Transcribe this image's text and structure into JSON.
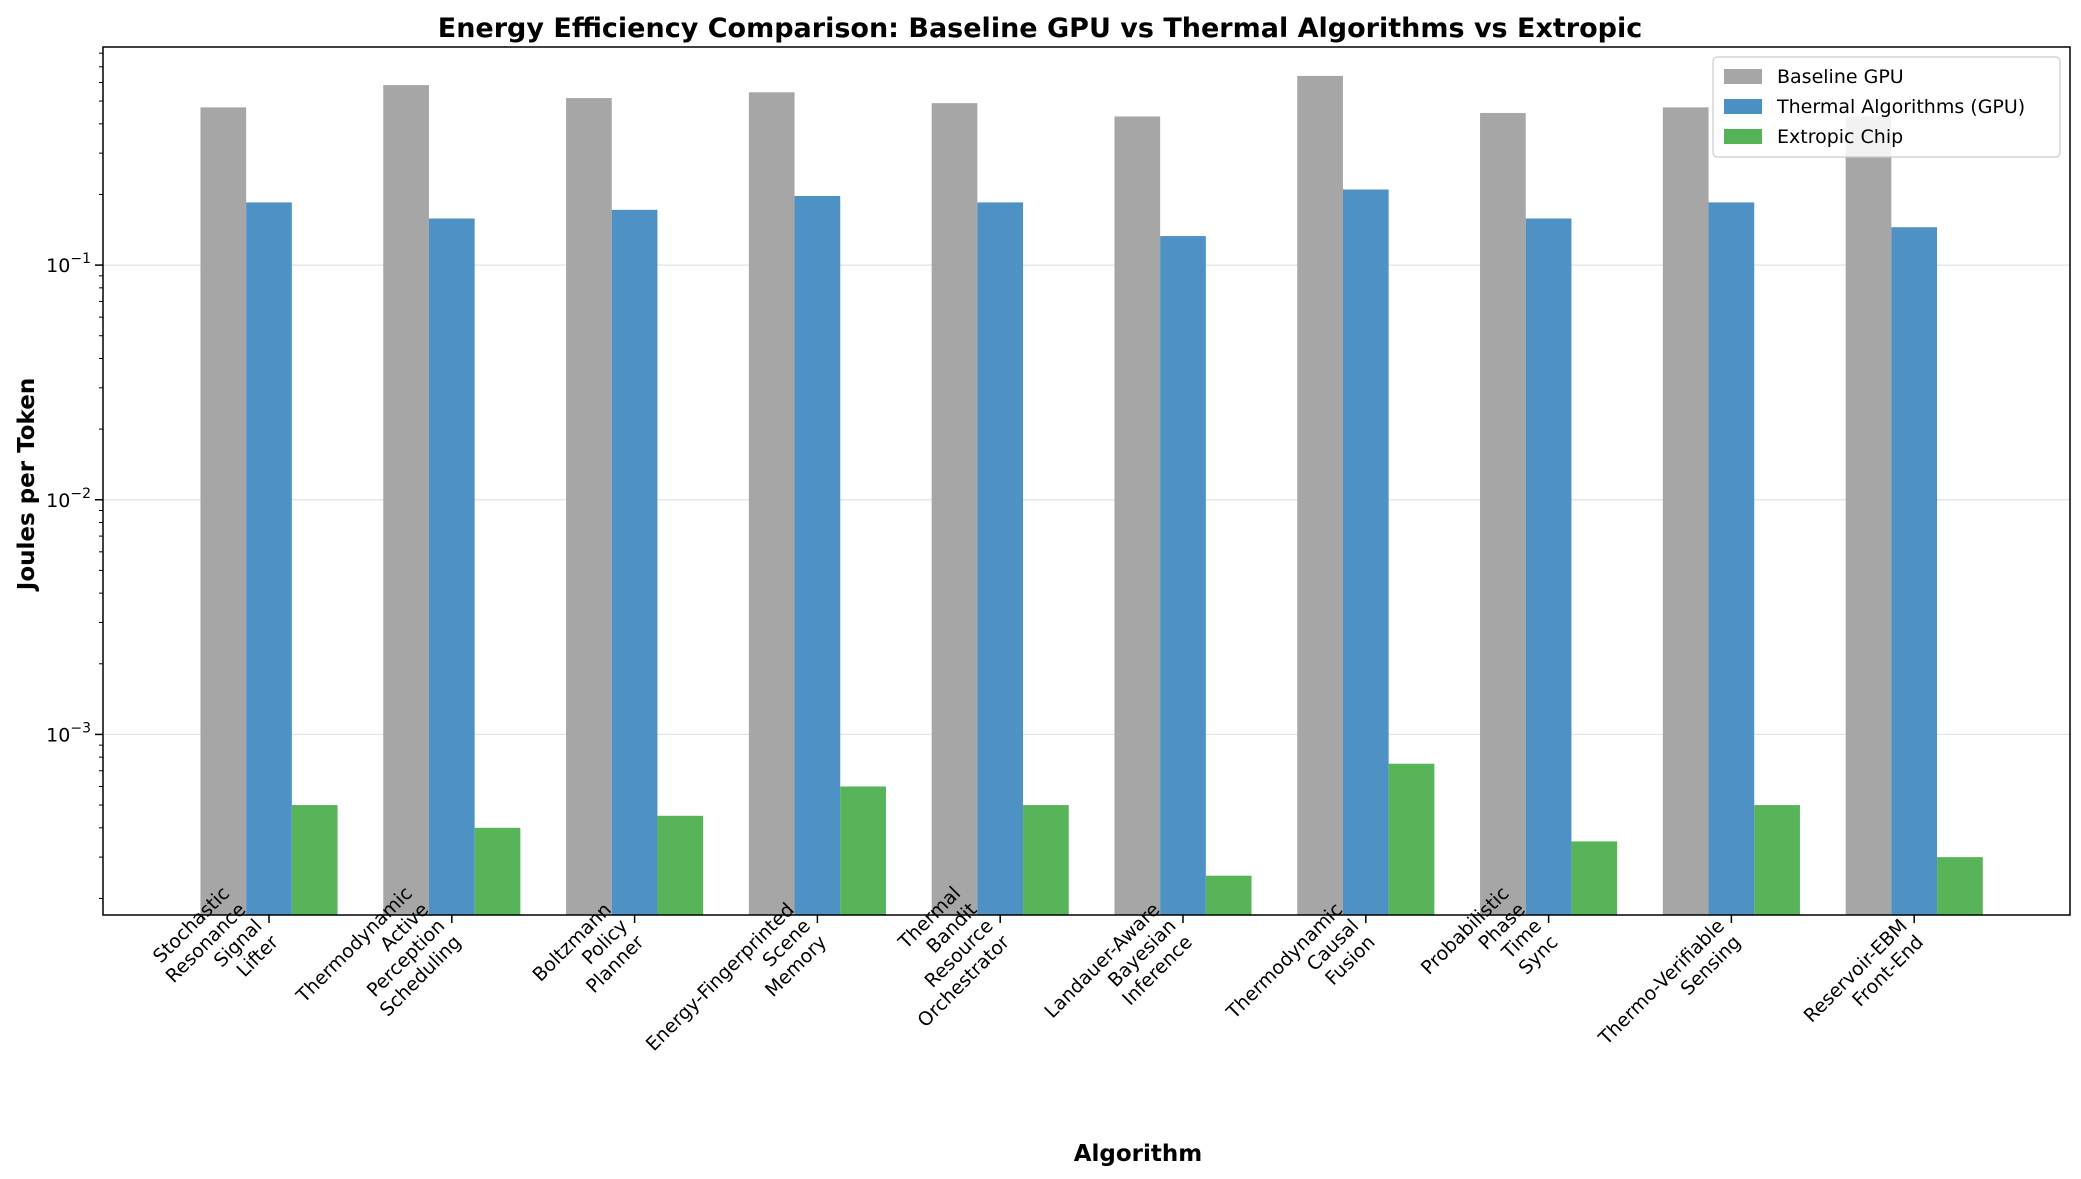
{
  "chart_data": {
    "type": "bar",
    "title": "Energy Efficiency Comparison: Baseline GPU vs Thermal Algorithms vs Extropic",
    "xlabel": "Algorithm",
    "ylabel": "Joules per Token",
    "yscale": "log",
    "ylim": [
      0.00017,
      0.85
    ],
    "yticks": [
      {
        "value": 0.1,
        "base": "10",
        "exp": "−1"
      },
      {
        "value": 0.01,
        "base": "10",
        "exp": "−2"
      },
      {
        "value": 0.001,
        "base": "10",
        "exp": "−3"
      }
    ],
    "grid": "y-major",
    "legend_position": "top-right",
    "categories": [
      [
        "Stochastic",
        "Resonance",
        "Signal",
        "Lifter"
      ],
      [
        "Thermodynamic",
        "Active",
        "Perception",
        "Scheduling"
      ],
      [
        "Boltzmann",
        "Policy",
        "Planner"
      ],
      [
        "Energy-Fingerprinted",
        "Scene",
        "Memory"
      ],
      [
        "Thermal",
        "Bandit",
        "Resource",
        "Orchestrator"
      ],
      [
        "Landauer-Aware",
        "Bayesian",
        "Inference"
      ],
      [
        "Thermodynamic",
        "Causal",
        "Fusion"
      ],
      [
        "Probabilistic",
        "Phase",
        "Time",
        "Sync"
      ],
      [
        "Thermo-Verifiable",
        "Sensing"
      ],
      [
        "Reservoir-EBM",
        "Front-End"
      ]
    ],
    "series": [
      {
        "name": "Baseline GPU",
        "color": "#a6a6a6",
        "values": [
          0.47,
          0.585,
          0.515,
          0.545,
          0.49,
          0.43,
          0.64,
          0.445,
          0.47,
          0.43
        ]
      },
      {
        "name": "Thermal Algorithms (GPU)",
        "color": "#4a90c4",
        "values": [
          0.185,
          0.158,
          0.172,
          0.197,
          0.185,
          0.133,
          0.21,
          0.158,
          0.185,
          0.145
        ]
      },
      {
        "name": "Extropic Chip",
        "color": "#55b255",
        "values": [
          0.0005,
          0.0004,
          0.00045,
          0.0006,
          0.0005,
          0.00025,
          0.00075,
          0.00035,
          0.0005,
          0.0003
        ]
      }
    ]
  }
}
